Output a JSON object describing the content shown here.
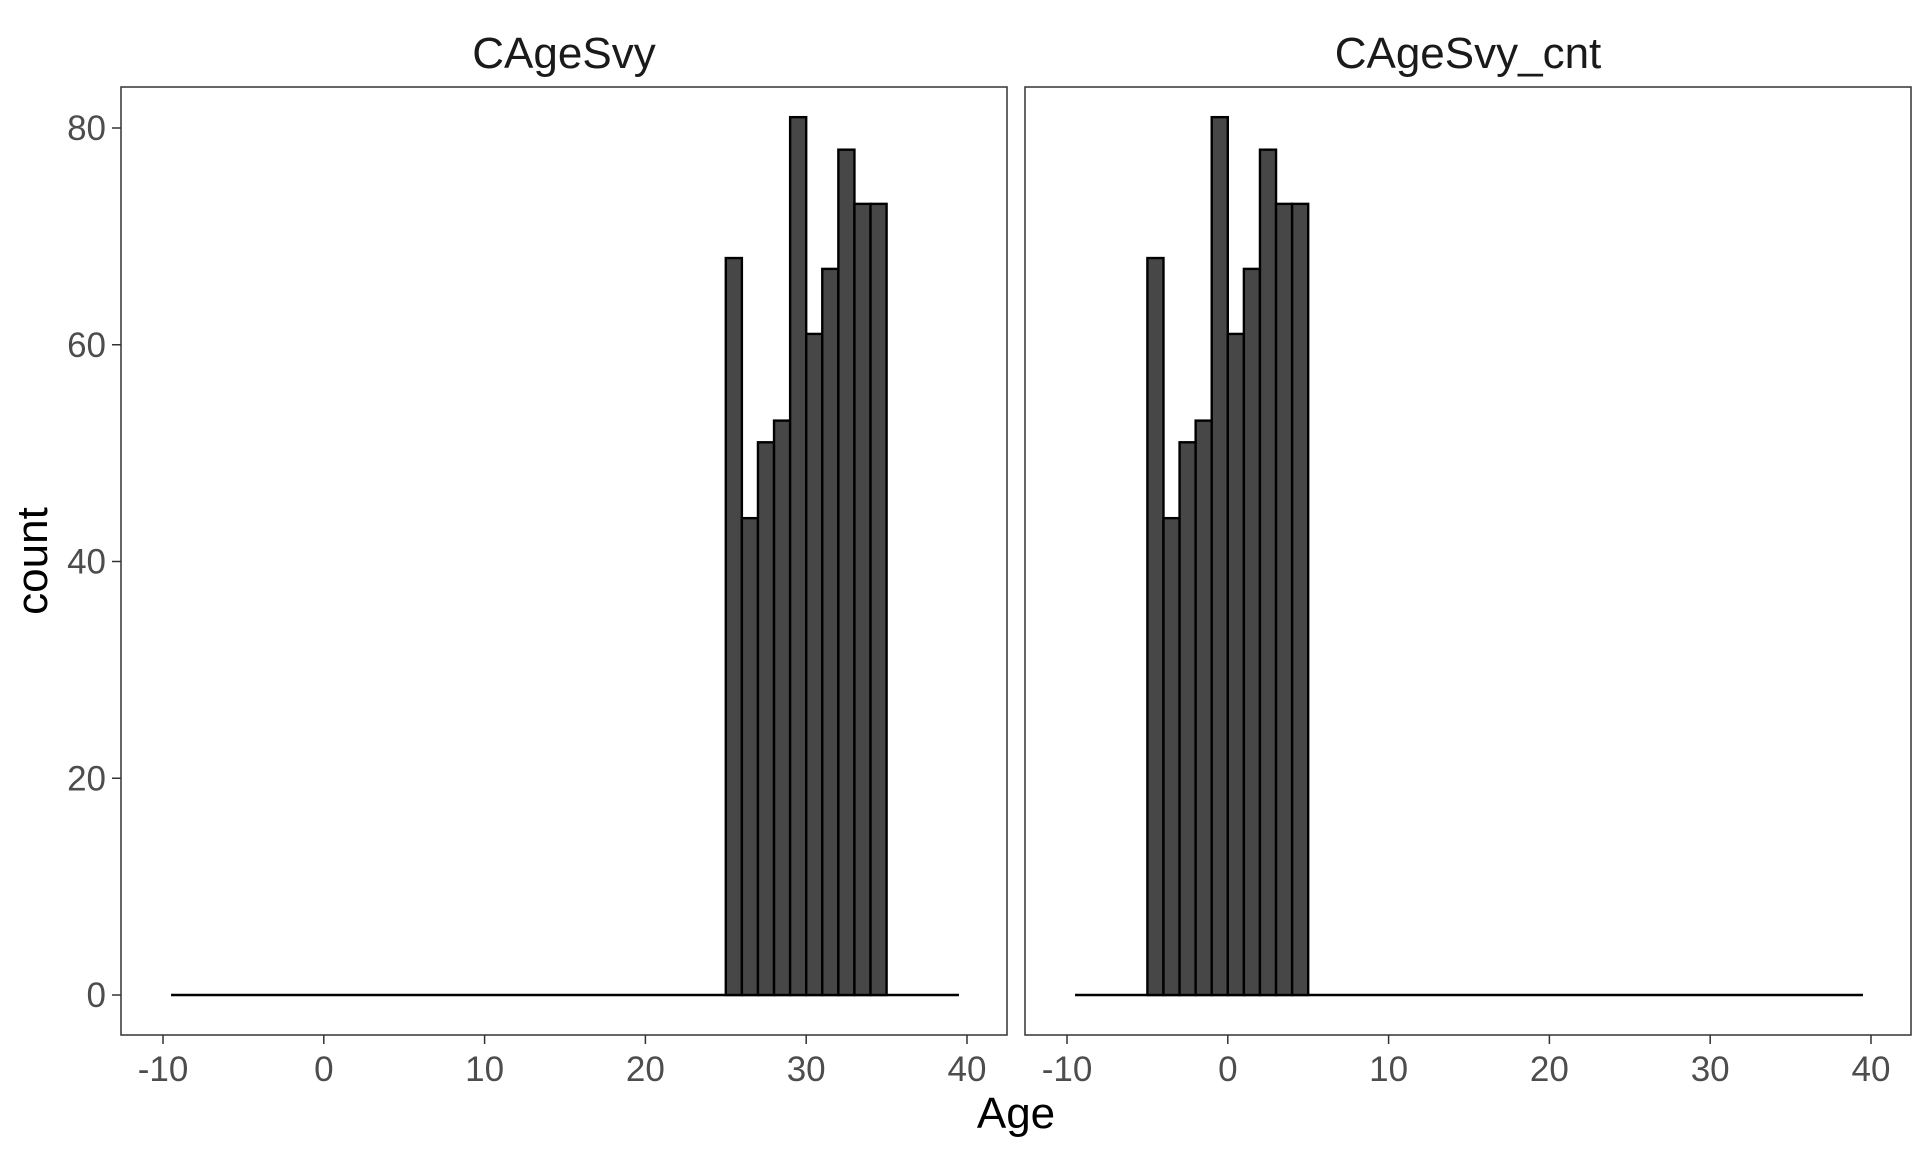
{
  "chart_data": [
    {
      "type": "bar",
      "subtype": "histogram",
      "title": "CAgeSvy",
      "xlabel": "Age",
      "ylabel": "count",
      "xlim": [
        -10,
        40
      ],
      "ylim": [
        0,
        80
      ],
      "x_range": [
        -9.5,
        39.5
      ],
      "bin_width": 1,
      "x_ticks": [
        -10,
        0,
        10,
        20,
        30,
        40
      ],
      "y_ticks": [
        0,
        20,
        40,
        60,
        80
      ],
      "bins_start": [
        25,
        26,
        27,
        28,
        29,
        30,
        31,
        32,
        33,
        34
      ],
      "values": [
        68,
        44,
        51,
        53,
        81,
        61,
        67,
        78,
        73,
        73
      ],
      "bar_color": "#474747",
      "grid": false
    },
    {
      "type": "bar",
      "subtype": "histogram",
      "title": "CAgeSvy_cnt",
      "xlabel": "Age",
      "ylabel": "count",
      "xlim": [
        -10,
        40
      ],
      "ylim": [
        0,
        80
      ],
      "x_range": [
        -9.5,
        39.5
      ],
      "bin_width": 1,
      "x_ticks": [
        -10,
        0,
        10,
        20,
        30,
        40
      ],
      "y_ticks": [
        0,
        20,
        40,
        60,
        80
      ],
      "bins_start": [
        -5,
        -4,
        -3,
        -2,
        -1,
        0,
        1,
        2,
        3,
        4
      ],
      "values": [
        68,
        44,
        51,
        53,
        81,
        61,
        67,
        78,
        73,
        73
      ],
      "bar_color": "#474747",
      "grid": false
    }
  ],
  "shared": {
    "xlabel": "Age",
    "ylabel": "count"
  }
}
